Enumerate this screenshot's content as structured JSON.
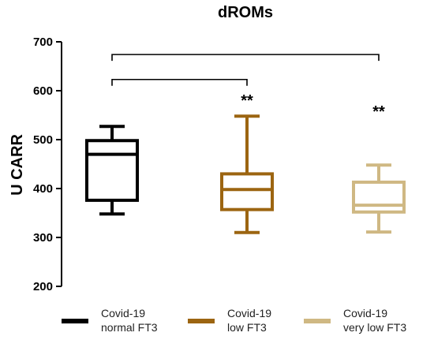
{
  "chart_data": {
    "type": "box",
    "title": "dROMs",
    "ylabel": "U CARR",
    "xlabel": "",
    "ylim": [
      200,
      700
    ],
    "yticks": [
      200,
      300,
      400,
      500,
      600,
      700
    ],
    "grid": false,
    "legend_position": "bottom",
    "series": [
      {
        "name_line1": "Covid-19",
        "name_line2": "normal FT3",
        "color": "#000000",
        "whisker_low": 348,
        "q1": 376,
        "median": 470,
        "q3": 498,
        "whisker_high": 527,
        "significance": ""
      },
      {
        "name_line1": "Covid-19",
        "name_line2": "low FT3",
        "color": "#9c6511",
        "whisker_low": 310,
        "q1": 357,
        "median": 398,
        "q3": 430,
        "whisker_high": 548,
        "significance": "**"
      },
      {
        "name_line1": "Covid-19",
        "name_line2": "very low FT3",
        "color": "#cfb883",
        "whisker_low": 311,
        "q1": 352,
        "median": 366,
        "q3": 413,
        "whisker_high": 448,
        "significance": "**"
      }
    ],
    "comparisons": [
      {
        "from": 0,
        "to": 1,
        "level": 623
      },
      {
        "from": 0,
        "to": 2,
        "level": 674
      }
    ]
  }
}
